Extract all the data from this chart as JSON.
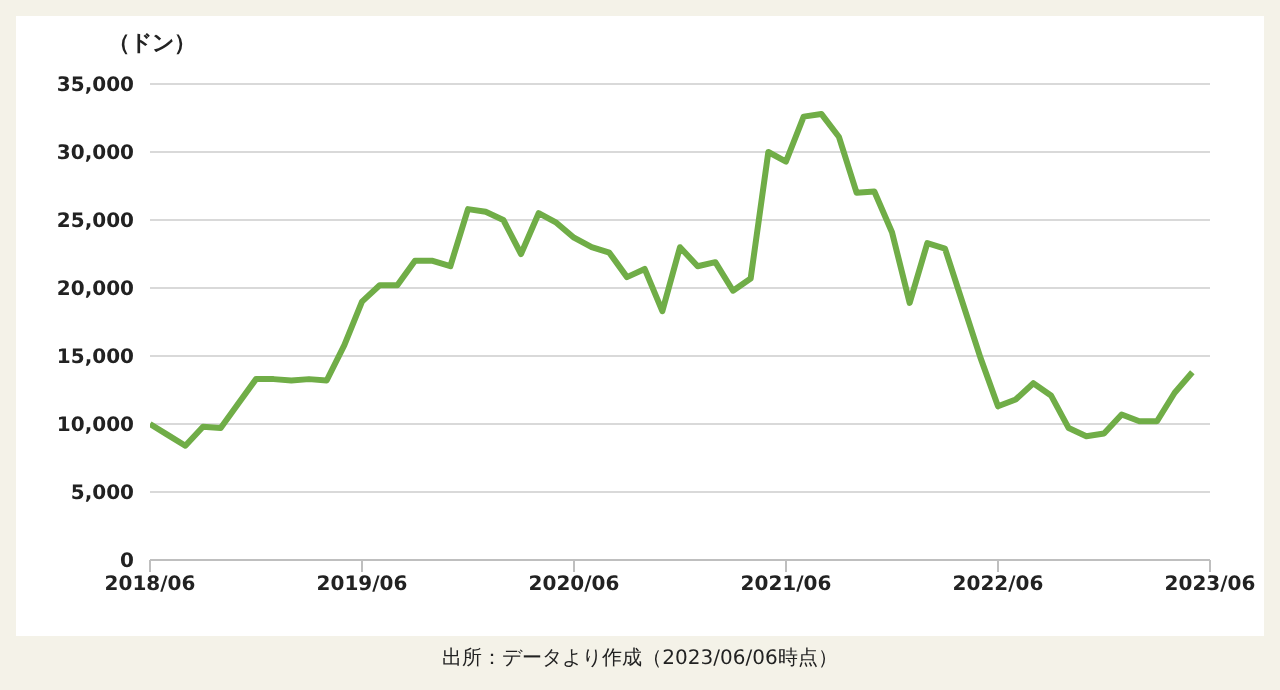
{
  "chart_data": {
    "type": "line",
    "ylabel": "（ドン）",
    "annotations": [
      "出所：データより作成（2023/06/06時点）"
    ],
    "x": [
      "2018-06",
      "2018-07",
      "2018-08",
      "2018-09",
      "2018-10",
      "2018-11",
      "2018-12",
      "2019-01",
      "2019-02",
      "2019-03",
      "2019-04",
      "2019-05",
      "2019-06",
      "2019-07",
      "2019-08",
      "2019-09",
      "2019-10",
      "2019-11",
      "2019-12",
      "2020-01",
      "2020-02",
      "2020-03",
      "2020-04",
      "2020-05",
      "2020-06",
      "2020-07",
      "2020-08",
      "2020-09",
      "2020-10",
      "2020-11",
      "2020-12",
      "2021-01",
      "2021-02",
      "2021-03",
      "2021-04",
      "2021-05",
      "2021-06",
      "2021-07",
      "2021-08",
      "2021-09",
      "2021-10",
      "2021-11",
      "2021-12",
      "2022-01",
      "2022-02",
      "2022-03",
      "2022-04",
      "2022-05",
      "2022-06",
      "2022-07",
      "2022-08",
      "2022-09",
      "2022-10",
      "2022-11",
      "2022-12",
      "2023-01",
      "2023-02",
      "2023-03",
      "2023-04",
      "2023-05"
    ],
    "series": [
      {
        "color": "#70ad47",
        "values": [
          10000,
          9200,
          8400,
          9800,
          9700,
          11500,
          13300,
          13300,
          13200,
          13300,
          13200,
          15800,
          19000,
          20200,
          20200,
          22000,
          22000,
          21600,
          25800,
          25600,
          25000,
          22500,
          25500,
          24800,
          23700,
          23000,
          22600,
          20800,
          21400,
          18300,
          23000,
          21600,
          21900,
          19800,
          20700,
          30000,
          29300,
          32600,
          32800,
          31100,
          27000,
          27100,
          24100,
          18900,
          23300,
          22900,
          18900,
          14900,
          11300,
          11800,
          13000,
          12100,
          9700,
          9100,
          9300,
          10700,
          10200,
          10200,
          12300,
          13800
        ]
      }
    ],
    "xlim": [
      "2018-06",
      "2023-06"
    ],
    "xticks": [
      {
        "value": "2018-06",
        "label": "2018/06"
      },
      {
        "value": "2019-06",
        "label": "2019/06"
      },
      {
        "value": "2020-06",
        "label": "2020/06"
      },
      {
        "value": "2021-06",
        "label": "2021/06"
      },
      {
        "value": "2022-06",
        "label": "2022/06"
      },
      {
        "value": "2023-06",
        "label": "2023/06"
      }
    ],
    "ylim": [
      0,
      35000
    ],
    "yticks": [
      0,
      {
        "value": 5000,
        "label": "5,000"
      },
      {
        "value": 10000,
        "label": "10,000"
      },
      {
        "value": 15000,
        "label": "15,000"
      },
      {
        "value": 20000,
        "label": "20,000"
      },
      {
        "value": 25000,
        "label": "25,000"
      },
      {
        "value": 30000,
        "label": "30,000"
      },
      {
        "value": 35000,
        "label": "35,000"
      }
    ],
    "grid": "y",
    "legend": false,
    "marker": "none",
    "line_style": "solid"
  }
}
